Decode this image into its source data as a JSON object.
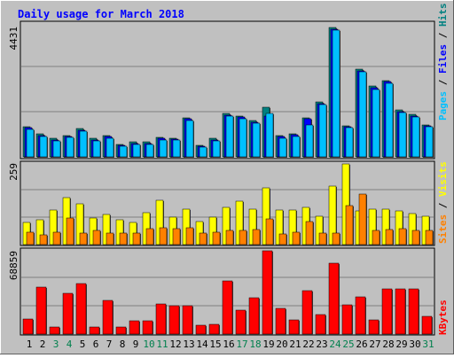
{
  "chart_data": {
    "type": "bar",
    "title": "Daily usage for March 2018",
    "categories": [
      "1",
      "2",
      "3",
      "4",
      "5",
      "6",
      "7",
      "8",
      "9",
      "10",
      "11",
      "12",
      "13",
      "14",
      "15",
      "16",
      "17",
      "18",
      "19",
      "20",
      "21",
      "22",
      "23",
      "24",
      "25",
      "26",
      "27",
      "28",
      "29",
      "30",
      "31"
    ],
    "weekend_days": [
      "3",
      "4",
      "10",
      "11",
      "17",
      "18",
      "24",
      "25",
      "31"
    ],
    "panels": [
      {
        "name": "hits-files-pages",
        "ymax": 4431,
        "ymax_label": "4431",
        "legend": [
          "Pages",
          "Files",
          "Hits"
        ],
        "series": [
          {
            "name": "Hits",
            "color": "#008080",
            "values": [
              1030,
              780,
              620,
              720,
              960,
              620,
              720,
              430,
              500,
              500,
              660,
              640,
              1340,
              400,
              620,
              1470,
              1400,
              1240,
              1690,
              720,
              780,
              1340,
              1870,
              4400,
              1070,
              2980,
              2400,
              2600,
              1600,
              1450,
              1100
            ]
          },
          {
            "name": "Files",
            "color": "#0000ff",
            "values": [
              980,
              730,
              580,
              680,
              910,
              580,
              680,
              390,
              460,
              460,
              620,
              600,
              1290,
              360,
              580,
              1420,
              1350,
              1190,
              1400,
              680,
              740,
              1290,
              1820,
              4350,
              1030,
              2930,
              2350,
              2550,
              1550,
              1400,
              1060
            ]
          },
          {
            "name": "Pages",
            "color": "#00c0ff",
            "values": [
              930,
              700,
              550,
              650,
              870,
              550,
              640,
              360,
              420,
              420,
              580,
              560,
              1240,
              320,
              540,
              1380,
              1300,
              1150,
              1480,
              640,
              700,
              1100,
              1780,
              4300,
              1000,
              2880,
              2300,
              2500,
              1510,
              1360,
              1020
            ]
          }
        ]
      },
      {
        "name": "visits-sites",
        "ymax": 259,
        "ymax_label": "259",
        "legend": [
          "Sites",
          "Visits"
        ],
        "series": [
          {
            "name": "Visits",
            "color": "#ffff00",
            "values": [
              70,
              80,
              110,
              150,
              130,
              85,
              95,
              80,
              70,
              100,
              140,
              88,
              114,
              72,
              86,
              117,
              138,
              113,
              180,
              109,
              110,
              119,
              90,
              186,
              256,
              108,
              114,
              113,
              106,
              98,
              91
            ]
          },
          {
            "name": "Sites",
            "color": "#ff8000",
            "values": [
              40,
              30,
              40,
              85,
              36,
              45,
              37,
              37,
              36,
              52,
              54,
              52,
              53,
              37,
              40,
              45,
              45,
              47,
              83,
              33,
              40,
              74,
              37,
              37,
              124,
              160,
              45,
              47,
              52,
              45,
              45
            ]
          }
        ]
      },
      {
        "name": "kbytes",
        "ymax": 68859,
        "ymax_label": "68859",
        "legend": [
          "KBytes"
        ],
        "series": [
          {
            "name": "KBytes",
            "color": "#ff0000",
            "values": [
              12800,
              38900,
              6000,
              34000,
              41500,
              5600,
              28000,
              6000,
              10800,
              11000,
              25000,
              23500,
              23500,
              7000,
              8300,
              44300,
              20000,
              30000,
              69000,
              21000,
              11700,
              36000,
              16000,
              58500,
              24500,
              31000,
              12000,
              37000,
              37500,
              37500,
              14500
            ]
          }
        ]
      }
    ]
  },
  "labels": {
    "title": "Daily usage for March 2018",
    "panel1_legend": {
      "pages": "Pages",
      "sep1": " / ",
      "files": "Files",
      "sep2": " / ",
      "hits": "Hits"
    },
    "panel2_legend": {
      "sites": "Sites",
      "sep": " / ",
      "visits": "Visits"
    },
    "panel3_legend": {
      "kbytes": "KBytes"
    }
  },
  "colors": {
    "background": "#c0c0c0",
    "title": "#0000ff",
    "weekday_label": "#000000",
    "weekend_label": "#00804d",
    "pages": "#00c0ff",
    "files": "#0000ff",
    "hits": "#008080",
    "visits": "#ffff00",
    "sites": "#ff8000",
    "kbytes": "#ff0000"
  }
}
